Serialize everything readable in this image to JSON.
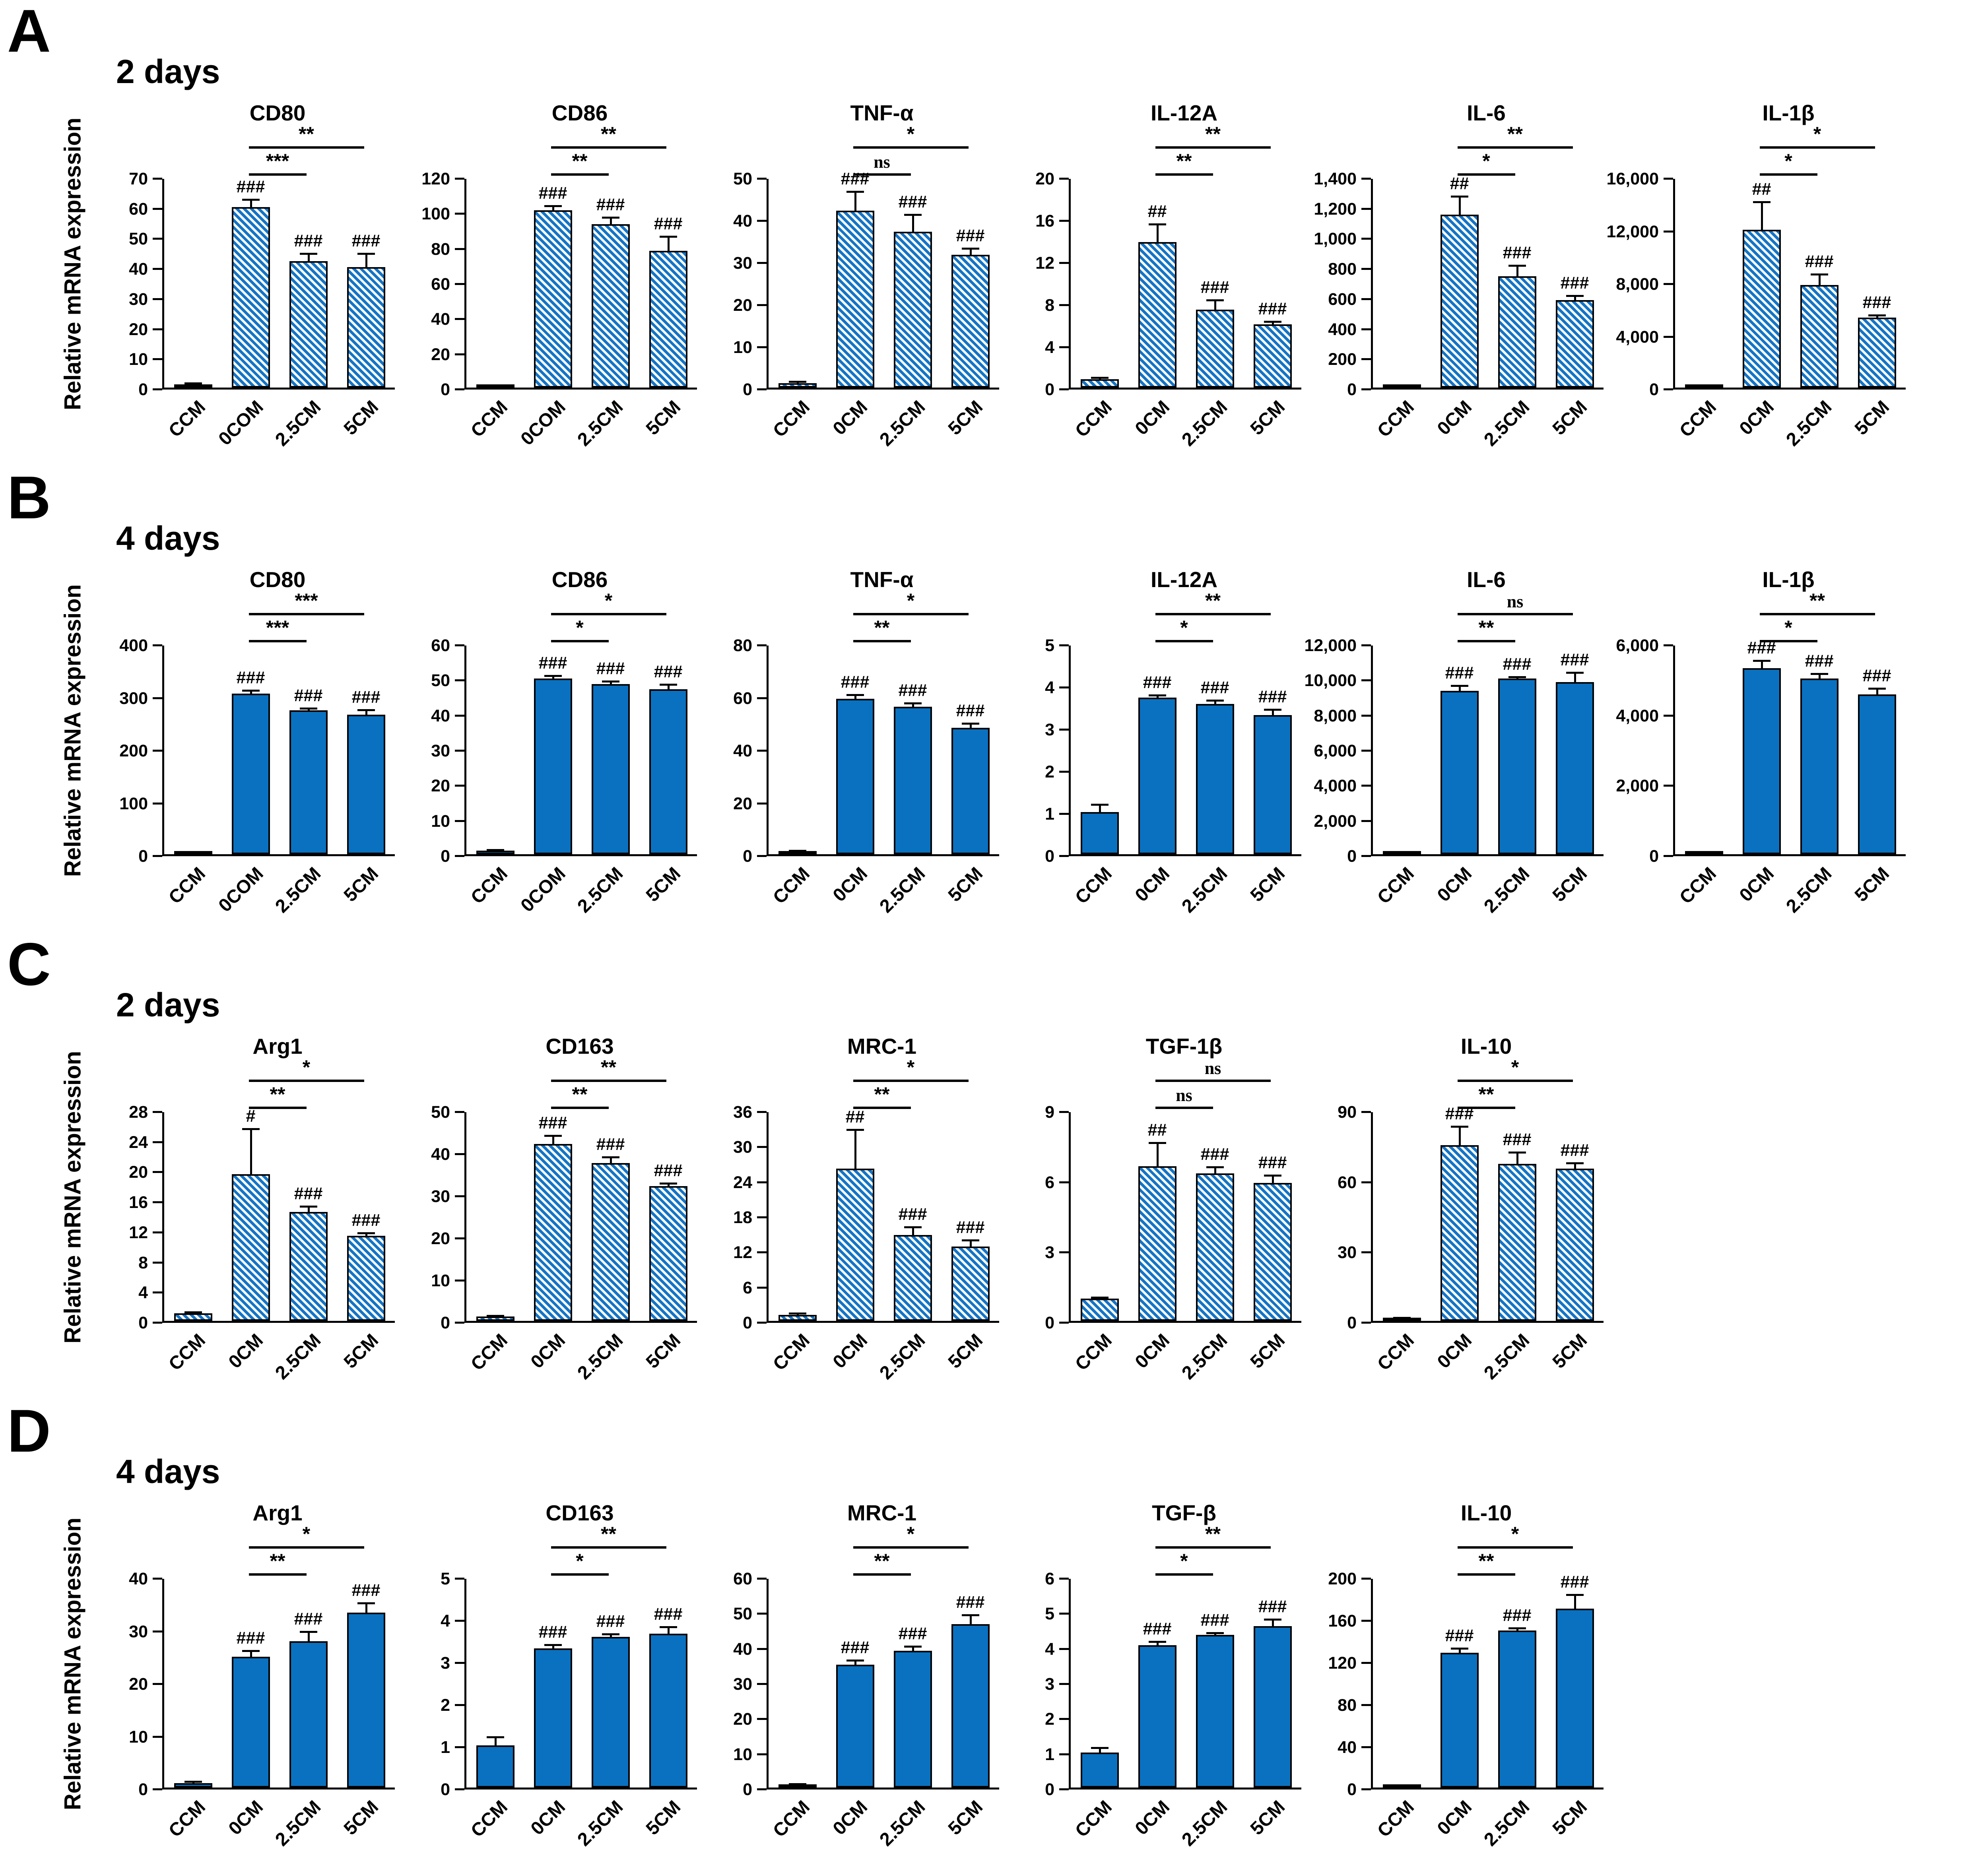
{
  "figure": {
    "y_axis_label": "Relative mRNA expression"
  },
  "colors": {
    "solid_bar": "#0a71c0",
    "hatch_stripe": "#1474c5",
    "axis": "#000000"
  },
  "chart_data": [
    {
      "type": "bar",
      "panel": "A",
      "subtitle": "2 days",
      "bar_style": "hatched",
      "ylabel": "Relative mRNA expression",
      "charts": [
        {
          "title": "CD80",
          "ylim": [
            0,
            70
          ],
          "ytick_step": 10,
          "categories": [
            "CCM",
            "0COM",
            "2.5CM",
            "5CM"
          ],
          "values": [
            1,
            60,
            42,
            40
          ],
          "errors": [
            0.4,
            2.5,
            2.5,
            4.5
          ],
          "hash_labels": [
            "",
            "###",
            "###",
            "###"
          ],
          "significance": [
            {
              "a": 1,
              "b": 2,
              "label": "***"
            },
            {
              "a": 1,
              "b": 3,
              "label": "**"
            }
          ]
        },
        {
          "title": "CD86",
          "ylim": [
            0,
            120
          ],
          "ytick_step": 20,
          "categories": [
            "CCM",
            "0COM",
            "2.5CM",
            "5CM"
          ],
          "values": [
            1,
            101,
            93,
            78
          ],
          "errors": [
            0.4,
            2.5,
            4,
            8
          ],
          "hash_labels": [
            "",
            "###",
            "###",
            "###"
          ],
          "significance": [
            {
              "a": 1,
              "b": 2,
              "label": "**"
            },
            {
              "a": 1,
              "b": 3,
              "label": "**"
            }
          ]
        },
        {
          "title": "TNF-α",
          "ylim": [
            0,
            50
          ],
          "ytick_step": 10,
          "categories": [
            "CCM",
            "0CM",
            "2.5CM",
            "5CM"
          ],
          "values": [
            1,
            42,
            37,
            31.5
          ],
          "errors": [
            0.4,
            4.5,
            4,
            1.5
          ],
          "hash_labels": [
            "",
            "###",
            "###",
            "###"
          ],
          "significance": [
            {
              "a": 1,
              "b": 2,
              "label": "ns"
            },
            {
              "a": 1,
              "b": 3,
              "label": "*"
            }
          ]
        },
        {
          "title": "IL-12A",
          "ylim": [
            0,
            20
          ],
          "ytick_step": 4,
          "categories": [
            "CCM",
            "0CM",
            "2.5CM",
            "5CM"
          ],
          "values": [
            0.8,
            13.8,
            7.4,
            6
          ],
          "errors": [
            0.15,
            1.7,
            0.9,
            0.25
          ],
          "hash_labels": [
            "",
            "##",
            "###",
            "###"
          ],
          "significance": [
            {
              "a": 1,
              "b": 2,
              "label": "**"
            },
            {
              "a": 1,
              "b": 3,
              "label": "**"
            }
          ]
        },
        {
          "title": "IL-6",
          "ylim": [
            0,
            1400
          ],
          "ytick_step": 200,
          "categories": [
            "CCM",
            "0CM",
            "2.5CM",
            "5CM"
          ],
          "values": [
            8,
            1150,
            740,
            580
          ],
          "errors": [
            3,
            120,
            70,
            30
          ],
          "hash_labels": [
            "",
            "##",
            "###",
            "###"
          ],
          "significance": [
            {
              "a": 1,
              "b": 2,
              "label": "*"
            },
            {
              "a": 1,
              "b": 3,
              "label": "**"
            }
          ]
        },
        {
          "title": "IL-1β",
          "ylim": [
            0,
            16000
          ],
          "ytick_step": 4000,
          "categories": [
            "CCM",
            "0CM",
            "2.5CM",
            "5CM"
          ],
          "values": [
            120,
            12000,
            7800,
            5300
          ],
          "errors": [
            40,
            2100,
            800,
            200
          ],
          "hash_labels": [
            "",
            "##",
            "###",
            "###"
          ],
          "significance": [
            {
              "a": 1,
              "b": 2,
              "label": "*"
            },
            {
              "a": 1,
              "b": 3,
              "label": "*"
            }
          ]
        }
      ]
    },
    {
      "type": "bar",
      "panel": "B",
      "subtitle": "4 days",
      "bar_style": "solid",
      "ylabel": "Relative mRNA expression",
      "charts": [
        {
          "title": "CD80",
          "ylim": [
            0,
            400
          ],
          "ytick_step": 100,
          "categories": [
            "CCM",
            "0COM",
            "2.5CM",
            "5CM"
          ],
          "values": [
            2,
            305,
            273,
            265
          ],
          "errors": [
            1,
            6,
            4,
            9
          ],
          "hash_labels": [
            "",
            "###",
            "###",
            "###"
          ],
          "significance": [
            {
              "a": 1,
              "b": 2,
              "label": "***"
            },
            {
              "a": 1,
              "b": 3,
              "label": "***"
            }
          ]
        },
        {
          "title": "CD86",
          "ylim": [
            0,
            60
          ],
          "ytick_step": 10,
          "categories": [
            "CCM",
            "0COM",
            "2.5CM",
            "5CM"
          ],
          "values": [
            1,
            50,
            48.5,
            47
          ],
          "errors": [
            0.3,
            0.8,
            0.8,
            1.3
          ],
          "hash_labels": [
            "",
            "###",
            "###",
            "###"
          ],
          "significance": [
            {
              "a": 1,
              "b": 2,
              "label": "*"
            },
            {
              "a": 1,
              "b": 3,
              "label": "*"
            }
          ]
        },
        {
          "title": "TNF-α",
          "ylim": [
            0,
            80
          ],
          "ytick_step": 20,
          "categories": [
            "CCM",
            "0CM",
            "2.5CM",
            "5CM"
          ],
          "values": [
            1,
            59,
            56,
            48
          ],
          "errors": [
            0.3,
            1.6,
            1.3,
            1.6
          ],
          "hash_labels": [
            "",
            "###",
            "###",
            "###"
          ],
          "significance": [
            {
              "a": 1,
              "b": 2,
              "label": "**"
            },
            {
              "a": 1,
              "b": 3,
              "label": "*"
            }
          ]
        },
        {
          "title": "IL-12A",
          "ylim": [
            0,
            5
          ],
          "ytick_step": 1,
          "categories": [
            "CCM",
            "0CM",
            "2.5CM",
            "5CM"
          ],
          "values": [
            1,
            3.72,
            3.57,
            3.3
          ],
          "errors": [
            0.18,
            0.05,
            0.08,
            0.13
          ],
          "hash_labels": [
            "",
            "###",
            "###",
            "###"
          ],
          "significance": [
            {
              "a": 1,
              "b": 2,
              "label": "*"
            },
            {
              "a": 1,
              "b": 3,
              "label": "**"
            }
          ]
        },
        {
          "title": "IL-6",
          "ylim": [
            0,
            12000
          ],
          "ytick_step": 2000,
          "categories": [
            "CCM",
            "0CM",
            "2.5CM",
            "5CM"
          ],
          "values": [
            60,
            9300,
            10000,
            9800
          ],
          "errors": [
            25,
            300,
            90,
            550
          ],
          "hash_labels": [
            "",
            "###",
            "###",
            "###"
          ],
          "significance": [
            {
              "a": 1,
              "b": 2,
              "label": "**"
            },
            {
              "a": 1,
              "b": 3,
              "label": "ns"
            }
          ]
        },
        {
          "title": "IL-1β",
          "ylim": [
            0,
            6000
          ],
          "ytick_step": 2000,
          "categories": [
            "CCM",
            "0CM",
            "2.5CM",
            "5CM"
          ],
          "values": [
            40,
            5300,
            5000,
            4550
          ],
          "errors": [
            15,
            210,
            140,
            170
          ],
          "hash_labels": [
            "",
            "###",
            "###",
            "###"
          ],
          "significance": [
            {
              "a": 1,
              "b": 2,
              "label": "*"
            },
            {
              "a": 1,
              "b": 3,
              "label": "**"
            }
          ]
        }
      ]
    },
    {
      "type": "bar",
      "panel": "C",
      "subtitle": "2 days",
      "bar_style": "hatched",
      "ylabel": "Relative mRNA expression",
      "charts": [
        {
          "title": "Arg1",
          "ylim": [
            0,
            28
          ],
          "ytick_step": 4,
          "categories": [
            "CCM",
            "0CM",
            "2.5CM",
            "5CM"
          ],
          "values": [
            1,
            19.5,
            14.5,
            11.3
          ],
          "errors": [
            0.15,
            6,
            0.7,
            0.35
          ],
          "hash_labels": [
            "",
            "#",
            "###",
            "###"
          ],
          "significance": [
            {
              "a": 1,
              "b": 2,
              "label": "**"
            },
            {
              "a": 1,
              "b": 3,
              "label": "*"
            }
          ]
        },
        {
          "title": "CD163",
          "ylim": [
            0,
            50
          ],
          "ytick_step": 10,
          "categories": [
            "CCM",
            "0CM",
            "2.5CM",
            "5CM"
          ],
          "values": [
            1,
            42,
            37.5,
            32
          ],
          "errors": [
            0.2,
            2,
            1.4,
            0.6
          ],
          "hash_labels": [
            "",
            "###",
            "###",
            "###"
          ],
          "significance": [
            {
              "a": 1,
              "b": 2,
              "label": "**"
            },
            {
              "a": 1,
              "b": 3,
              "label": "**"
            }
          ]
        },
        {
          "title": "MRC-1",
          "ylim": [
            0,
            36
          ],
          "ytick_step": 6,
          "categories": [
            "CCM",
            "0CM",
            "2.5CM",
            "5CM"
          ],
          "values": [
            1,
            26,
            14.7,
            12.7
          ],
          "errors": [
            0.3,
            6.7,
            1.3,
            1.1
          ],
          "hash_labels": [
            "",
            "##",
            "###",
            "###"
          ],
          "significance": [
            {
              "a": 1,
              "b": 2,
              "label": "**"
            },
            {
              "a": 1,
              "b": 3,
              "label": "*"
            }
          ]
        },
        {
          "title": "TGF-1β",
          "ylim": [
            0,
            9
          ],
          "ytick_step": 3,
          "categories": [
            "CCM",
            "0CM",
            "2.5CM",
            "5CM"
          ],
          "values": [
            0.95,
            6.6,
            6.3,
            5.9
          ],
          "errors": [
            0.06,
            1,
            0.28,
            0.32
          ],
          "hash_labels": [
            "",
            "##",
            "###",
            "###"
          ],
          "significance": [
            {
              "a": 1,
              "b": 2,
              "label": "ns"
            },
            {
              "a": 1,
              "b": 3,
              "label": "ns"
            }
          ]
        },
        {
          "title": "IL-10",
          "ylim": [
            0,
            90
          ],
          "ytick_step": 30,
          "categories": [
            "CCM",
            "0CM",
            "2.5CM",
            "5CM"
          ],
          "values": [
            1,
            75,
            67,
            65
          ],
          "errors": [
            0.3,
            8,
            5,
            2.5
          ],
          "hash_labels": [
            "",
            "###",
            "###",
            "###"
          ],
          "significance": [
            {
              "a": 1,
              "b": 2,
              "label": "**"
            },
            {
              "a": 1,
              "b": 3,
              "label": "*"
            }
          ]
        }
      ]
    },
    {
      "type": "bar",
      "panel": "D",
      "subtitle": "4 days",
      "bar_style": "solid",
      "ylabel": "Relative mRNA expression",
      "charts": [
        {
          "title": "Arg1",
          "ylim": [
            0,
            40
          ],
          "ytick_step": 10,
          "categories": [
            "CCM",
            "0CM",
            "2.5CM",
            "5CM"
          ],
          "values": [
            0.8,
            24.8,
            27.8,
            33.2
          ],
          "errors": [
            0.3,
            1.2,
            1.8,
            1.8
          ],
          "hash_labels": [
            "",
            "###",
            "###",
            "###"
          ],
          "significance": [
            {
              "a": 1,
              "b": 2,
              "label": "**"
            },
            {
              "a": 1,
              "b": 3,
              "label": "*"
            }
          ]
        },
        {
          "title": "CD163",
          "ylim": [
            0,
            5
          ],
          "ytick_step": 1,
          "categories": [
            "CCM",
            "0CM",
            "2.5CM",
            "5CM"
          ],
          "values": [
            1,
            3.3,
            3.58,
            3.65
          ],
          "errors": [
            0.2,
            0.09,
            0.06,
            0.16
          ],
          "hash_labels": [
            "",
            "###",
            "###",
            "###"
          ],
          "significance": [
            {
              "a": 1,
              "b": 2,
              "label": "*"
            },
            {
              "a": 1,
              "b": 3,
              "label": "**"
            }
          ]
        },
        {
          "title": "MRC-1",
          "ylim": [
            0,
            60
          ],
          "ytick_step": 10,
          "categories": [
            "CCM",
            "0CM",
            "2.5CM",
            "5CM"
          ],
          "values": [
            0.8,
            35,
            39,
            46.5
          ],
          "errors": [
            0.25,
            1.2,
            1.2,
            2.6
          ],
          "hash_labels": [
            "",
            "###",
            "###",
            "###"
          ],
          "significance": [
            {
              "a": 1,
              "b": 2,
              "label": "**"
            },
            {
              "a": 1,
              "b": 3,
              "label": "*"
            }
          ]
        },
        {
          "title": "TGF-β",
          "ylim": [
            0,
            6
          ],
          "ytick_step": 1,
          "categories": [
            "CCM",
            "0CM",
            "2.5CM",
            "5CM"
          ],
          "values": [
            1,
            4.05,
            4.35,
            4.6
          ],
          "errors": [
            0.13,
            0.1,
            0.05,
            0.19
          ],
          "hash_labels": [
            "",
            "###",
            "###",
            "###"
          ],
          "significance": [
            {
              "a": 1,
              "b": 2,
              "label": "*"
            },
            {
              "a": 1,
              "b": 3,
              "label": "**"
            }
          ]
        },
        {
          "title": "IL-10",
          "ylim": [
            0,
            200
          ],
          "ytick_step": 40,
          "categories": [
            "CCM",
            "0CM",
            "2.5CM",
            "5CM"
          ],
          "values": [
            1,
            128,
            149,
            170
          ],
          "errors": [
            0.6,
            4,
            2.5,
            13
          ],
          "hash_labels": [
            "",
            "###",
            "###",
            "###"
          ],
          "significance": [
            {
              "a": 1,
              "b": 2,
              "label": "**"
            },
            {
              "a": 1,
              "b": 3,
              "label": "*"
            }
          ]
        }
      ]
    }
  ]
}
